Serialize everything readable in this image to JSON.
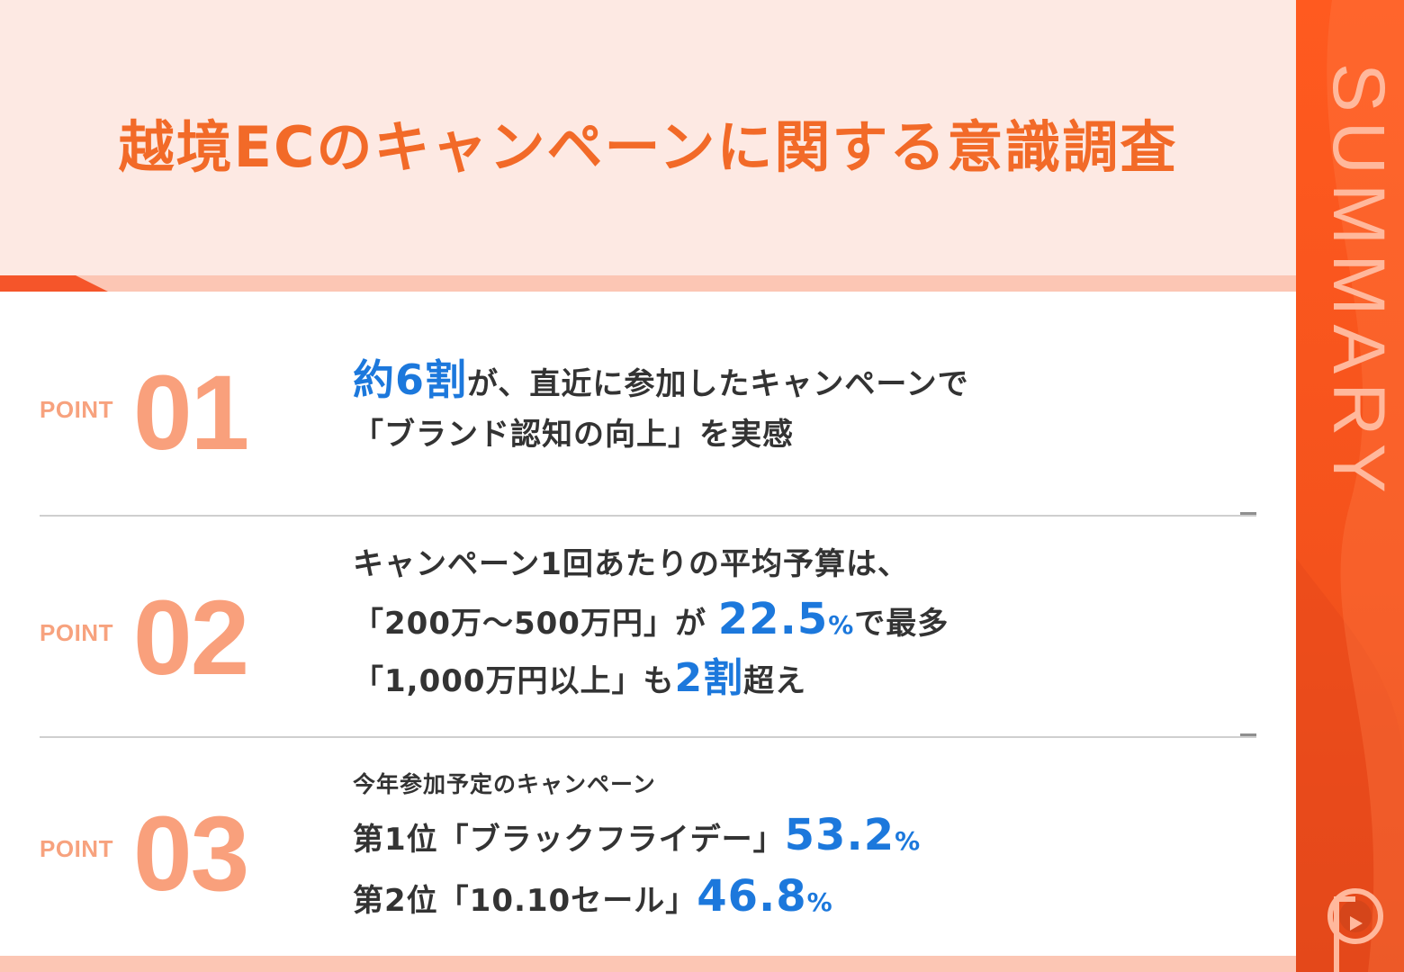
{
  "title": "越境ECのキャンペーンに関する意識調査",
  "sidebar": {
    "label": "SUMMARY"
  },
  "colors": {
    "accent": "#f26a28",
    "sidebar": "#ff5a1f",
    "highlight": "#1c78dc",
    "point_number": "#f9a07c"
  },
  "points": [
    {
      "label": "POINT",
      "number": "01",
      "lines": [
        {
          "hl": "約6割",
          "rest": "が、直近に参加したキャンペーンで"
        },
        {
          "text": "「ブランド認知の向上」を実感"
        }
      ]
    },
    {
      "label": "POINT",
      "number": "02",
      "lines": [
        {
          "text": "キャンペーン1回あたりの平均予算は、"
        },
        {
          "pre": "「200万～500万円」が ",
          "hl": "22.5",
          "pct": "%",
          "post": "で最多"
        },
        {
          "pre": "「1,000万円以上」も",
          "hl": "2割",
          "post": "超え"
        }
      ]
    },
    {
      "label": "POINT",
      "number": "03",
      "lines": [
        {
          "text": "今年参加予定のキャンペーン"
        },
        {
          "pre": "第1位「ブラックフライデー」",
          "hl": "53.2",
          "pct": "%"
        },
        {
          "pre": "第2位「10.10セール」",
          "hl": "46.8",
          "pct": "%"
        }
      ]
    }
  ]
}
